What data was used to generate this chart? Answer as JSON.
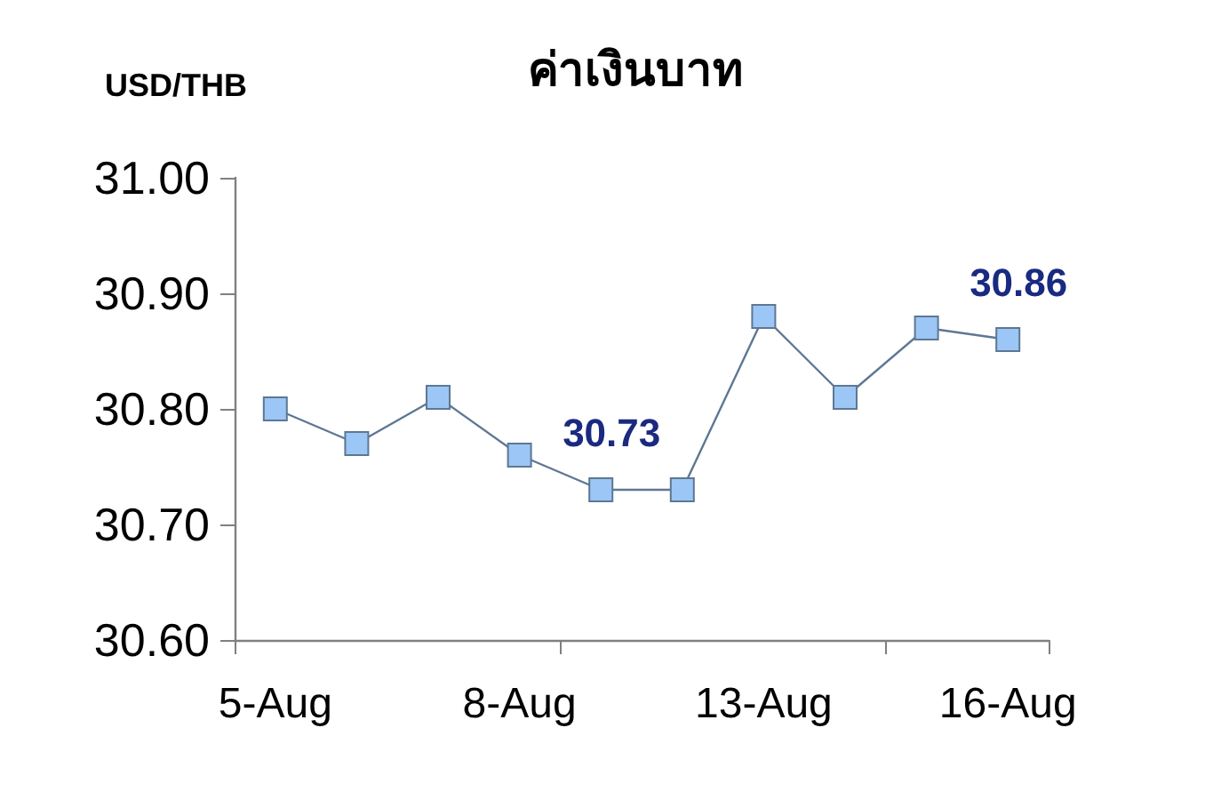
{
  "chart_data": {
    "type": "line",
    "title": "ค่าเงินบาท",
    "ylabel": "USD/THB",
    "categories": [
      "5-Aug",
      null,
      null,
      "8-Aug",
      null,
      null,
      "13-Aug",
      null,
      null,
      "16-Aug"
    ],
    "series": [
      {
        "color": "#9cc6f5",
        "values": [
          30.8,
          30.77,
          30.81,
          30.76,
          30.73,
          30.73,
          30.88,
          30.81,
          30.87,
          30.86
        ],
        "value_labels": [
          null,
          null,
          null,
          null,
          "30.73",
          null,
          null,
          null,
          null,
          "30.86"
        ]
      }
    ],
    "ylim": [
      30.6,
      31.0
    ],
    "yticks": [
      {
        "value": 30.6,
        "label": "30.60"
      },
      {
        "value": 30.7,
        "label": "30.70"
      },
      {
        "value": 30.8,
        "label": "30.80"
      },
      {
        "value": 30.9,
        "label": "30.90"
      },
      {
        "value": 31.0,
        "label": "31.00"
      }
    ],
    "marker": "square",
    "line_style": "solid"
  }
}
